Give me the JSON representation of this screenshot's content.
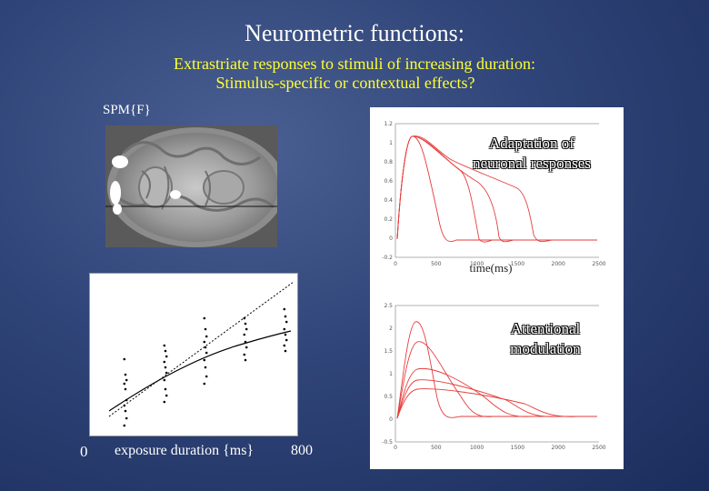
{
  "slide": {
    "title": "Neurometric functions:",
    "subtitle_line1": "Extrastriate responses to stimuli of increasing duration:",
    "subtitle_line2": "Stimulus-specific or contextual effects?",
    "spm_label": "SPM{F}",
    "scatter_axis": {
      "x_start": "0",
      "x_label": "exposure duration {ms}",
      "x_end": "800"
    },
    "top_plot": {
      "annotation_line1": "Adaptation of",
      "annotation_line2": "neuronal responses",
      "x_label": "time(ms)",
      "y_ticks": [
        "1.2",
        "1",
        "0.8",
        "0.6",
        "0.4",
        "0.2",
        "0",
        "-0.2"
      ],
      "x_ticks": [
        "0",
        "500",
        "1000",
        "1500",
        "2000",
        "2500"
      ]
    },
    "bottom_plot": {
      "annotation_line1": "Attentional",
      "annotation_line2": "modulation",
      "y_ticks": [
        "2.5",
        "2",
        "1.5",
        "1",
        "0.5",
        "0",
        "-0.5"
      ],
      "x_ticks": [
        "0",
        "500",
        "1000",
        "1500",
        "2000",
        "2500"
      ]
    },
    "colors": {
      "title": "#ffffff",
      "subtitle": "#ffff33",
      "curves": "#e63c3c"
    }
  }
}
